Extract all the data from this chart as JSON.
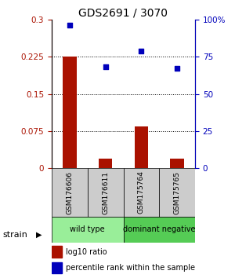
{
  "title": "GDS2691 / 3070",
  "samples": [
    "GSM176606",
    "GSM176611",
    "GSM175764",
    "GSM175765"
  ],
  "log10_ratio": [
    0.225,
    0.02,
    0.085,
    0.02
  ],
  "percentile_rank": [
    96,
    68,
    79,
    67
  ],
  "groups": [
    {
      "label": "wild type",
      "indices": [
        0,
        1
      ],
      "color": "#99ee99"
    },
    {
      "label": "dominant negative",
      "indices": [
        2,
        3
      ],
      "color": "#55cc55"
    }
  ],
  "ylim_left": [
    0,
    0.3
  ],
  "ylim_right": [
    0,
    100
  ],
  "yticks_left": [
    0,
    0.075,
    0.15,
    0.225,
    0.3
  ],
  "ytick_labels_left": [
    "0",
    "0.075",
    "0.15",
    "0.225",
    "0.3"
  ],
  "yticks_right": [
    0,
    25,
    50,
    75,
    100
  ],
  "ytick_labels_right": [
    "0",
    "25",
    "50",
    "75",
    "100%"
  ],
  "bar_color": "#aa1100",
  "dot_color": "#0000bb",
  "background_color": "#ffffff",
  "sample_box_color": "#cccccc",
  "strain_label": "strain",
  "legend_bar_label": "log10 ratio",
  "legend_dot_label": "percentile rank within the sample",
  "grid_color": "#000000",
  "title_fontsize": 10,
  "tick_fontsize": 7.5,
  "sample_fontsize": 6.5,
  "group_fontsize": 7,
  "legend_fontsize": 7
}
